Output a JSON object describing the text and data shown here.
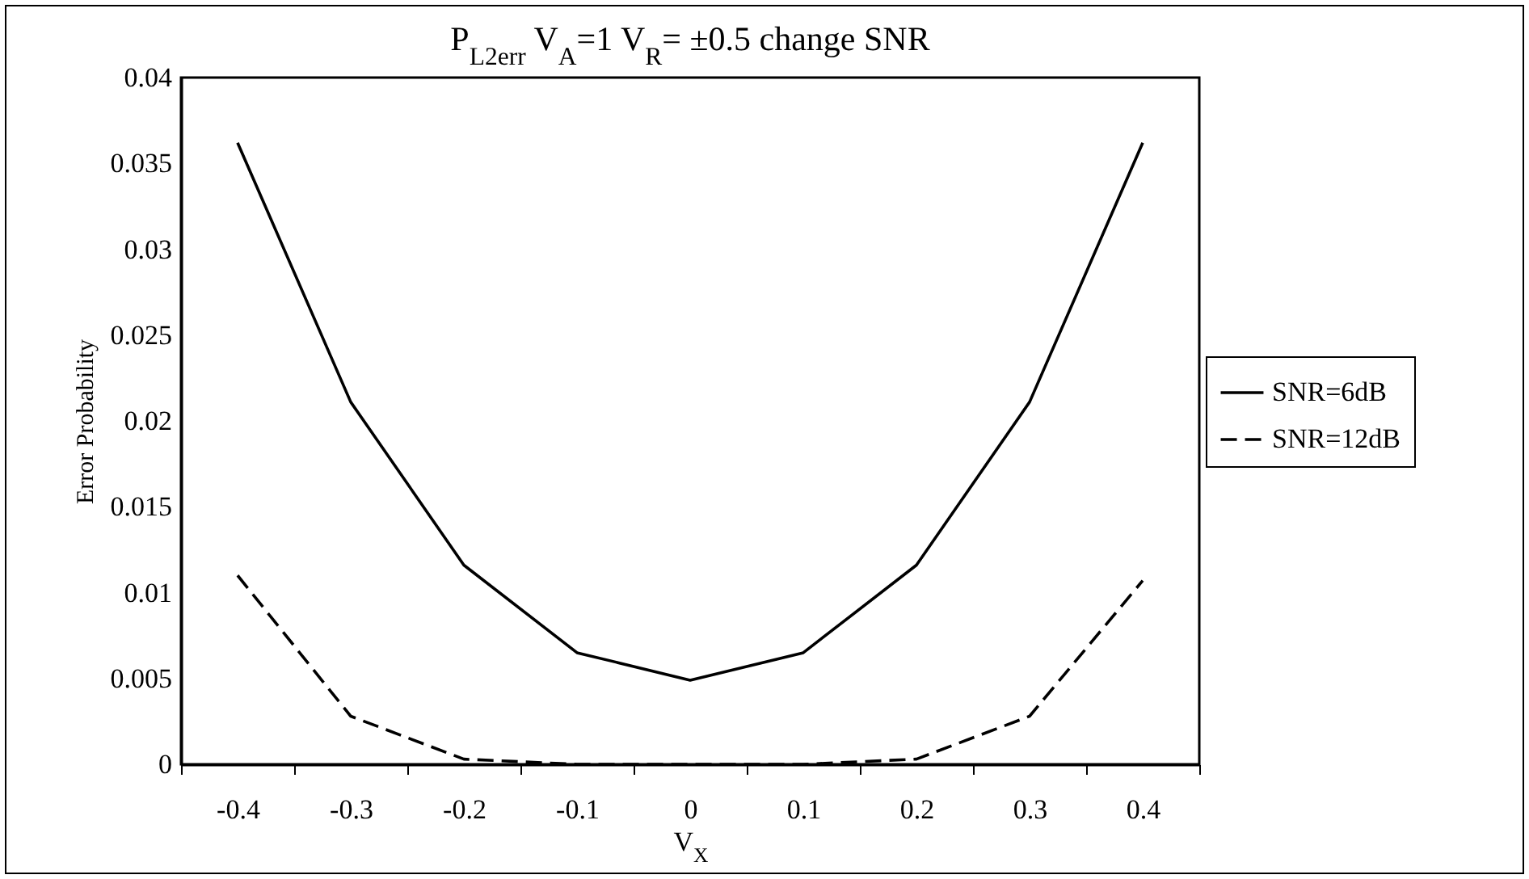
{
  "chart_data": {
    "type": "line",
    "title": "P$_{L2err}$ V$_{A}$=1 V$_{R}$= ±0.5 change SNR",
    "xlabel": "V$_{X}$",
    "ylabel": "Error Probability",
    "categories": [
      "-0.4",
      "-0.3",
      "-0.2",
      "-0.1",
      "0",
      "0.1",
      "0.2",
      "0.3",
      "0.4"
    ],
    "series": [
      {
        "name": "SNR=6dB",
        "color": "#000000",
        "line_style": "solid",
        "values": [
          0.0362,
          0.0211,
          0.0116,
          0.0065,
          0.0049,
          0.0065,
          0.0116,
          0.0211,
          0.0362
        ]
      },
      {
        "name": "SNR=12dB",
        "color": "#000000",
        "line_style": "dashed",
        "values": [
          0.011,
          0.0028,
          0.0003,
          0,
          0,
          0,
          0.0003,
          0.0028,
          0.0107
        ]
      }
    ],
    "ylim": [
      0,
      0.04
    ],
    "yticks": [
      0,
      0.005,
      0.01,
      0.015,
      0.02,
      0.025,
      0.03,
      0.035,
      0.04
    ],
    "grid": false,
    "legend": "right",
    "marker": "none"
  }
}
